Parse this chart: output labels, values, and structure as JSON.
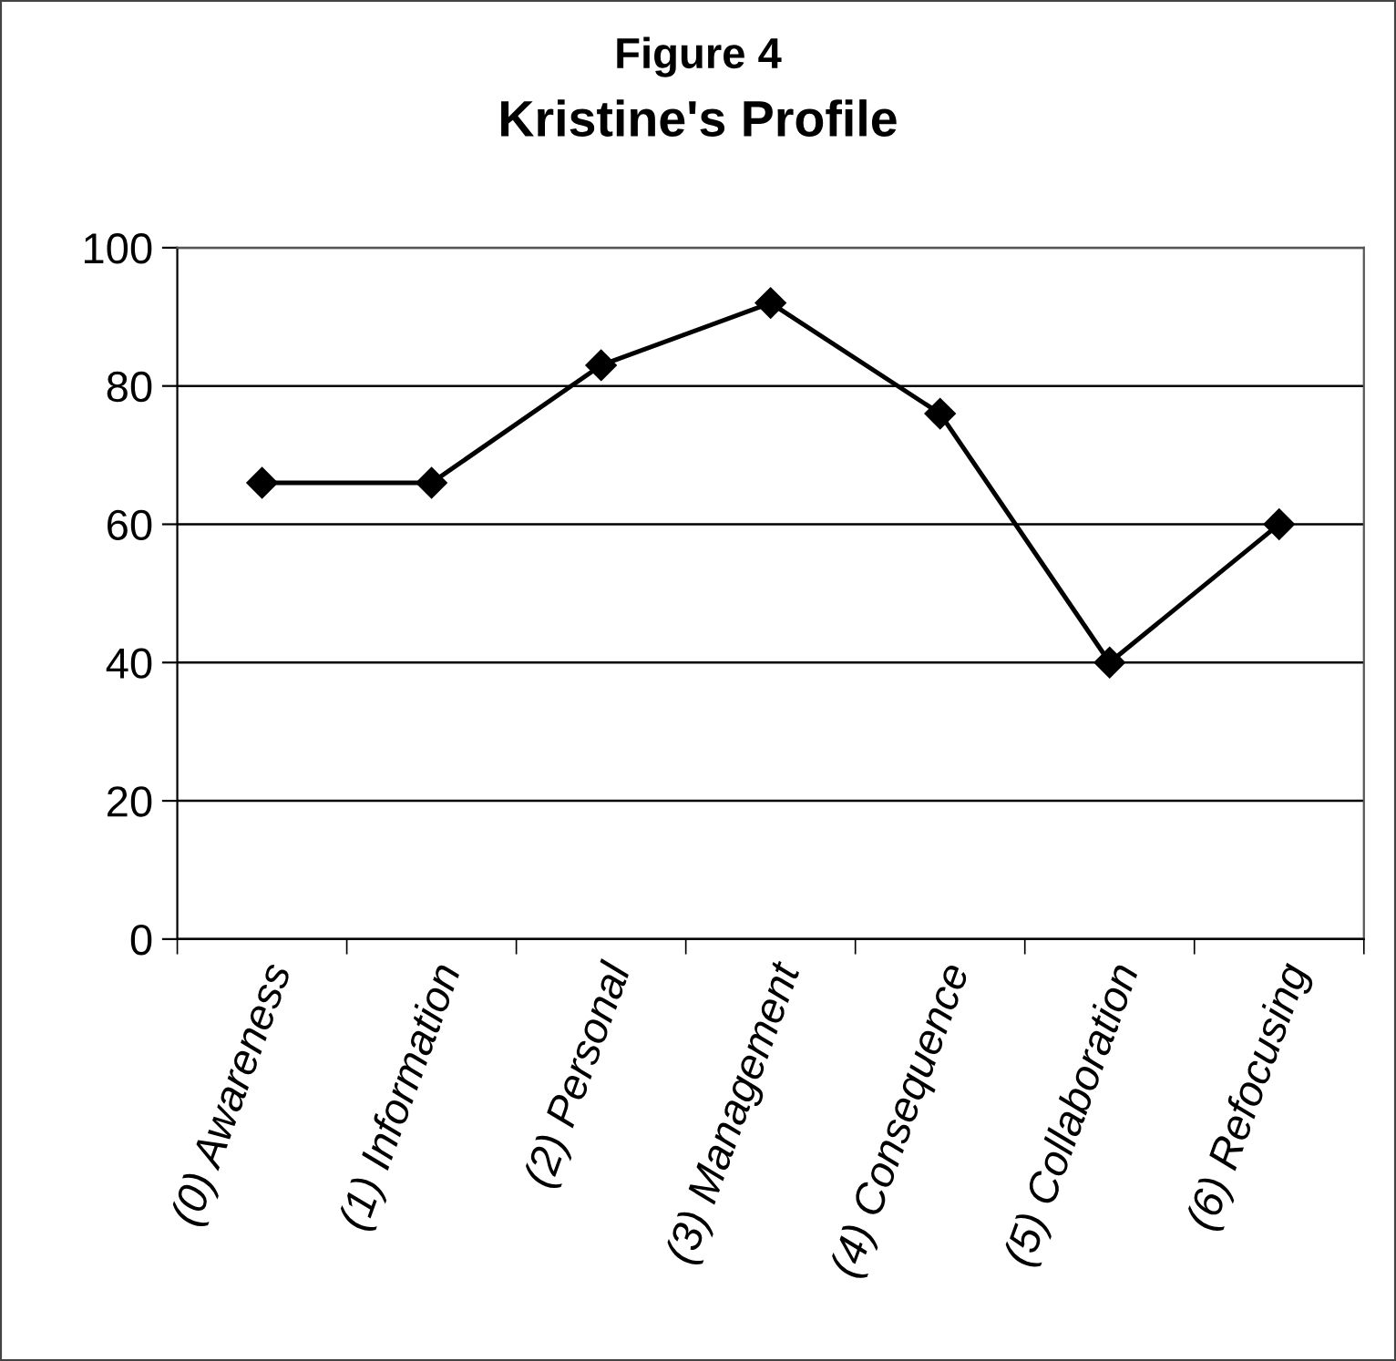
{
  "chart_data": {
    "type": "line",
    "title": "Figure 4",
    "subtitle": "Kristine's Profile",
    "categories": [
      "(0) Awareness",
      "(1) Information",
      "(2) Personal",
      "(3) Management",
      "(4) Consequence",
      "(5) Collaboration",
      "(6) Refocusing"
    ],
    "series": [
      {
        "color": "#000000",
        "values": [
          66,
          66,
          83,
          92,
          76,
          40,
          60
        ]
      }
    ],
    "ylim": [
      0,
      100
    ],
    "yticks": [
      0,
      20,
      40,
      60,
      80,
      100
    ],
    "grid": "y",
    "marker": "diamond",
    "line_style": "solid",
    "legend": false
  }
}
